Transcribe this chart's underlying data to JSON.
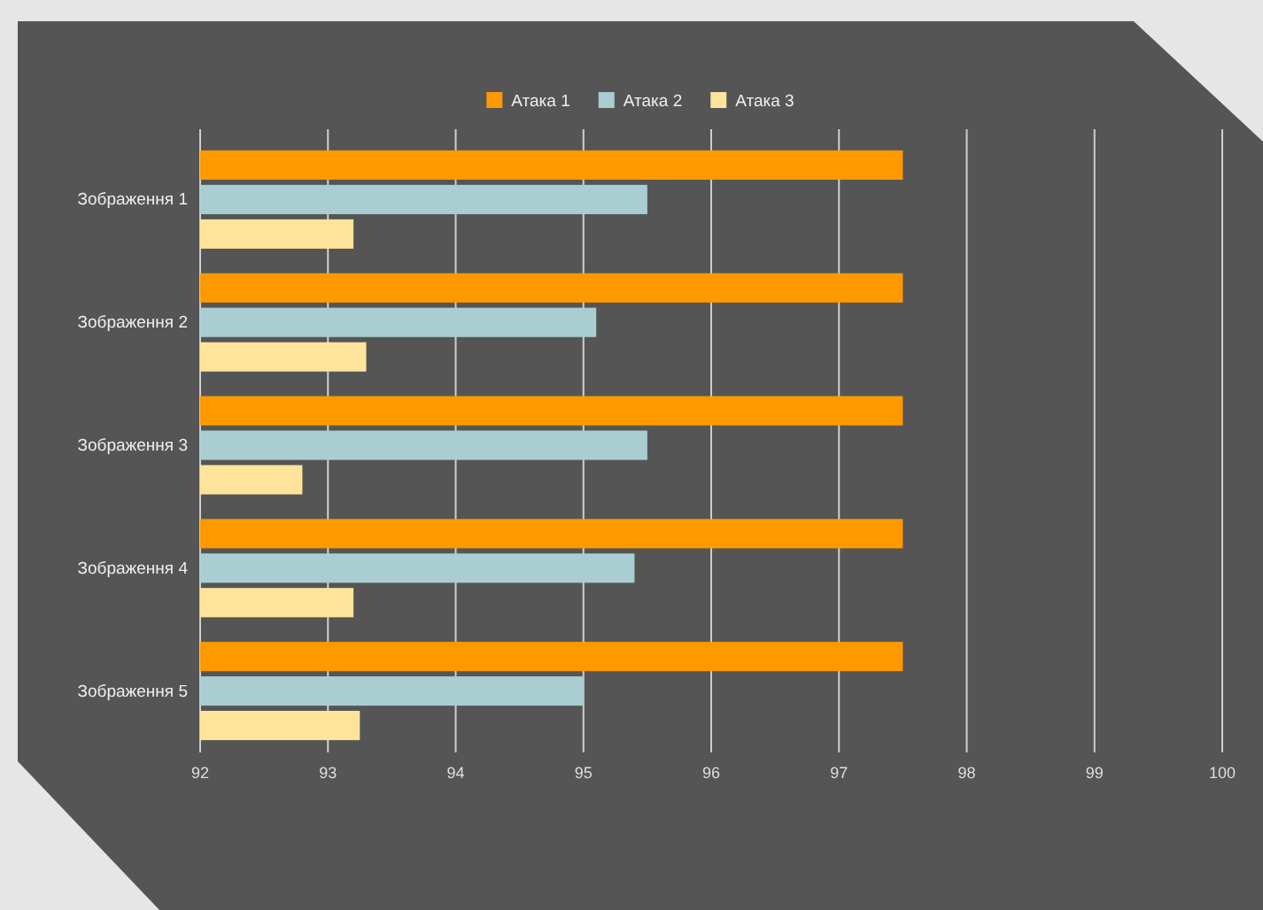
{
  "chart_data": {
    "type": "bar",
    "orientation": "horizontal",
    "categories": [
      "Зображення 1",
      "Зображення 2",
      "Зображення 3",
      "Зображення 4",
      "Зображення 5"
    ],
    "series": [
      {
        "name": "Атака 1",
        "color": "#ff9900",
        "values": [
          97.5,
          97.5,
          97.5,
          97.5,
          97.5
        ]
      },
      {
        "name": "Атака 2",
        "color": "#a9cdd1",
        "values": [
          95.5,
          95.1,
          95.5,
          95.4,
          95.0
        ]
      },
      {
        "name": "Атака 3",
        "color": "#fde49a",
        "values": [
          93.2,
          93.3,
          92.8,
          93.2,
          93.25
        ]
      }
    ],
    "xlim": [
      92,
      100
    ],
    "xticks": [
      92,
      93,
      94,
      95,
      96,
      97,
      98,
      99,
      100
    ],
    "grid": "x",
    "legend": "top"
  }
}
